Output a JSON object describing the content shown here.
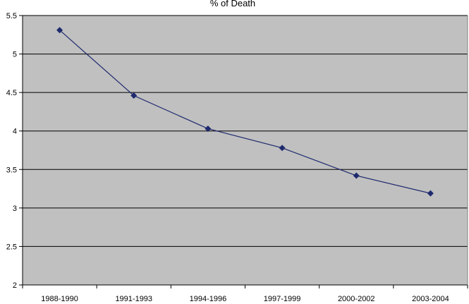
{
  "chart_data": {
    "type": "line",
    "title": "% of Death",
    "xlabel": "",
    "ylabel": "",
    "categories": [
      "1988-1990",
      "1991-1993",
      "1994-1996",
      "1997-1999",
      "2000-2002",
      "2003-2004"
    ],
    "series": [
      {
        "values": [
          5.31,
          4.46,
          4.03,
          3.78,
          3.42,
          3.19
        ]
      }
    ],
    "ylim": [
      2,
      5.5
    ],
    "yticks": [
      "2",
      "2.5",
      "3",
      "3.5",
      "4",
      "4.5",
      "5",
      "5.5"
    ],
    "grid": true,
    "legend": "none",
    "colors": {
      "plot_bg": "#c0c0c0",
      "line": "#1f2a6e",
      "grid": "#000000",
      "axis": "#000000"
    }
  }
}
